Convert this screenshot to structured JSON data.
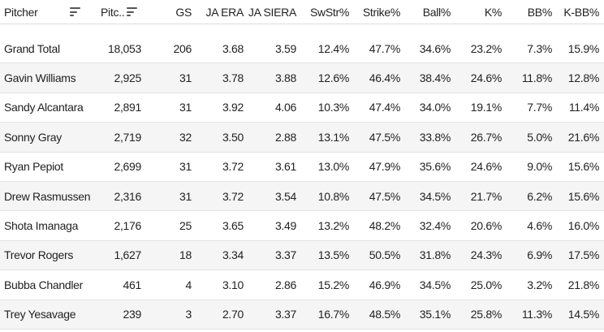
{
  "table": {
    "columns": [
      {
        "key": "pitcher",
        "label": "Pitcher",
        "sortable": true
      },
      {
        "key": "pitches",
        "label": "Pitc..",
        "sortable": true
      },
      {
        "key": "gs",
        "label": "GS"
      },
      {
        "key": "ja_era",
        "label": "JA ERA"
      },
      {
        "key": "ja_siera",
        "label": "JA SIERA"
      },
      {
        "key": "swstr",
        "label": "SwStr%"
      },
      {
        "key": "strike",
        "label": "Strike%"
      },
      {
        "key": "ball",
        "label": "Ball%"
      },
      {
        "key": "k",
        "label": "K%"
      },
      {
        "key": "bb",
        "label": "BB%"
      },
      {
        "key": "kbb",
        "label": "K-BB%"
      }
    ],
    "rows": [
      {
        "pitcher": "Grand Total",
        "pitches": "18,053",
        "gs": "206",
        "ja_era": "3.68",
        "ja_siera": "3.59",
        "swstr": "12.4%",
        "strike": "47.7%",
        "ball": "34.6%",
        "k": "23.2%",
        "bb": "7.3%",
        "kbb": "15.9%"
      },
      {
        "pitcher": "Gavin Williams",
        "pitches": "2,925",
        "gs": "31",
        "ja_era": "3.78",
        "ja_siera": "3.88",
        "swstr": "12.6%",
        "strike": "46.4%",
        "ball": "38.4%",
        "k": "24.6%",
        "bb": "11.8%",
        "kbb": "12.8%"
      },
      {
        "pitcher": "Sandy Alcantara",
        "pitches": "2,891",
        "gs": "31",
        "ja_era": "3.92",
        "ja_siera": "4.06",
        "swstr": "10.3%",
        "strike": "47.4%",
        "ball": "34.0%",
        "k": "19.1%",
        "bb": "7.7%",
        "kbb": "11.4%"
      },
      {
        "pitcher": "Sonny Gray",
        "pitches": "2,719",
        "gs": "32",
        "ja_era": "3.50",
        "ja_siera": "2.88",
        "swstr": "13.1%",
        "strike": "47.5%",
        "ball": "33.8%",
        "k": "26.7%",
        "bb": "5.0%",
        "kbb": "21.6%"
      },
      {
        "pitcher": "Ryan Pepiot",
        "pitches": "2,699",
        "gs": "31",
        "ja_era": "3.72",
        "ja_siera": "3.61",
        "swstr": "13.0%",
        "strike": "47.9%",
        "ball": "35.6%",
        "k": "24.6%",
        "bb": "9.0%",
        "kbb": "15.6%"
      },
      {
        "pitcher": "Drew Rasmussen",
        "pitches": "2,316",
        "gs": "31",
        "ja_era": "3.72",
        "ja_siera": "3.54",
        "swstr": "10.8%",
        "strike": "47.5%",
        "ball": "34.5%",
        "k": "21.7%",
        "bb": "6.2%",
        "kbb": "15.6%"
      },
      {
        "pitcher": "Shota Imanaga",
        "pitches": "2,176",
        "gs": "25",
        "ja_era": "3.65",
        "ja_siera": "3.49",
        "swstr": "13.2%",
        "strike": "48.2%",
        "ball": "32.4%",
        "k": "20.6%",
        "bb": "4.6%",
        "kbb": "16.0%"
      },
      {
        "pitcher": "Trevor Rogers",
        "pitches": "1,627",
        "gs": "18",
        "ja_era": "3.34",
        "ja_siera": "3.37",
        "swstr": "13.5%",
        "strike": "50.5%",
        "ball": "31.8%",
        "k": "24.3%",
        "bb": "6.9%",
        "kbb": "17.5%"
      },
      {
        "pitcher": "Bubba Chandler",
        "pitches": "461",
        "gs": "4",
        "ja_era": "3.10",
        "ja_siera": "2.86",
        "swstr": "15.2%",
        "strike": "46.9%",
        "ball": "34.5%",
        "k": "25.0%",
        "bb": "3.2%",
        "kbb": "21.8%"
      },
      {
        "pitcher": "Trey Yesavage",
        "pitches": "239",
        "gs": "3",
        "ja_era": "2.70",
        "ja_siera": "3.37",
        "swstr": "16.7%",
        "strike": "48.5%",
        "ball": "35.1%",
        "k": "25.8%",
        "bb": "11.3%",
        "kbb": "14.5%"
      }
    ]
  }
}
